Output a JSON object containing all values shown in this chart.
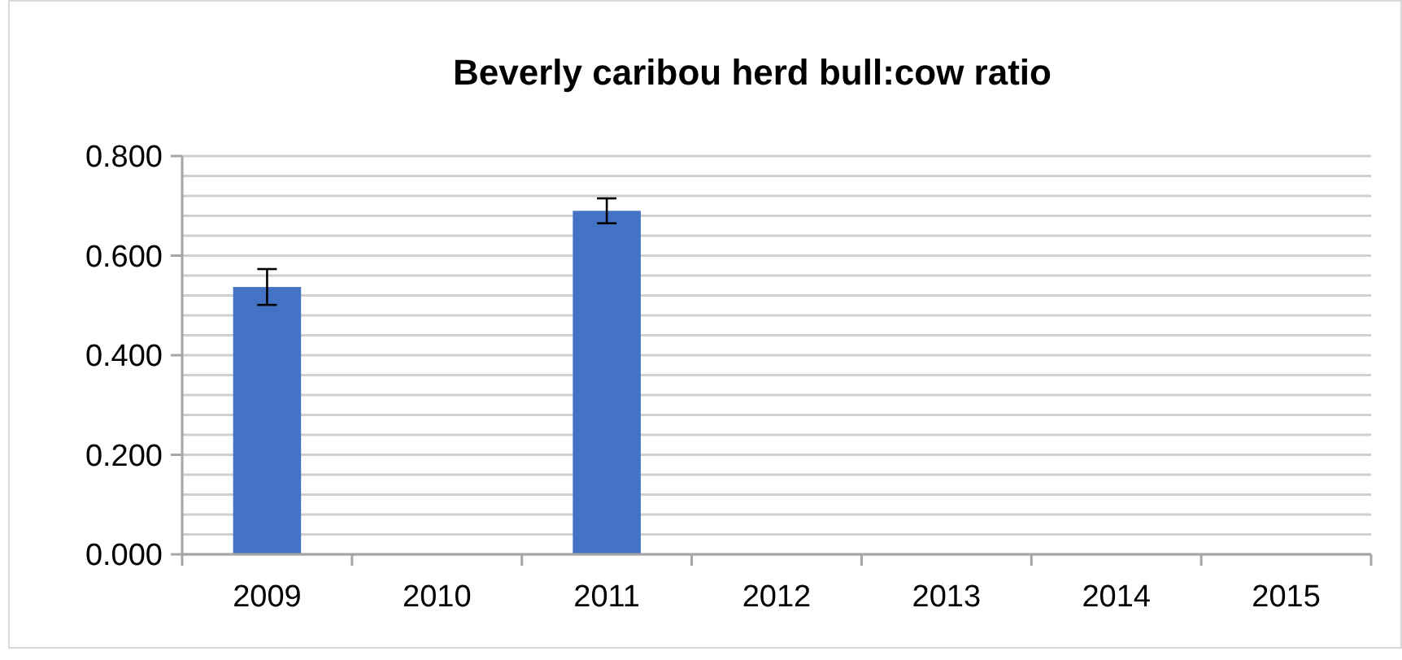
{
  "chart_data": {
    "type": "bar",
    "title": "Beverly caribou herd bull:cow ratio",
    "categories": [
      "2009",
      "2010",
      "2011",
      "2012",
      "2013",
      "2014",
      "2015"
    ],
    "values": [
      0.537,
      null,
      0.69,
      null,
      null,
      null,
      null
    ],
    "errors": [
      0.036,
      null,
      0.025,
      null,
      null,
      null,
      null
    ],
    "color": "#4472c4",
    "ylim": [
      0,
      0.8
    ],
    "yticks": [
      {
        "value": 0,
        "label": "0.000"
      },
      {
        "value": 0.04,
        "label": null
      },
      {
        "value": 0.08,
        "label": null
      },
      {
        "value": 0.12,
        "label": null
      },
      {
        "value": 0.16,
        "label": null
      },
      {
        "value": 0.2,
        "label": "0.200"
      },
      {
        "value": 0.24,
        "label": null
      },
      {
        "value": 0.28,
        "label": null
      },
      {
        "value": 0.32,
        "label": null
      },
      {
        "value": 0.36,
        "label": null
      },
      {
        "value": 0.4,
        "label": "0.400"
      },
      {
        "value": 0.44,
        "label": null
      },
      {
        "value": 0.48,
        "label": null
      },
      {
        "value": 0.52,
        "label": null
      },
      {
        "value": 0.56,
        "label": null
      },
      {
        "value": 0.6,
        "label": "0.600"
      },
      {
        "value": 0.64,
        "label": null
      },
      {
        "value": 0.68,
        "label": null
      },
      {
        "value": 0.72,
        "label": null
      },
      {
        "value": 0.76,
        "label": null
      },
      {
        "value": 0.8,
        "label": "0.800"
      }
    ],
    "grid": "y"
  }
}
